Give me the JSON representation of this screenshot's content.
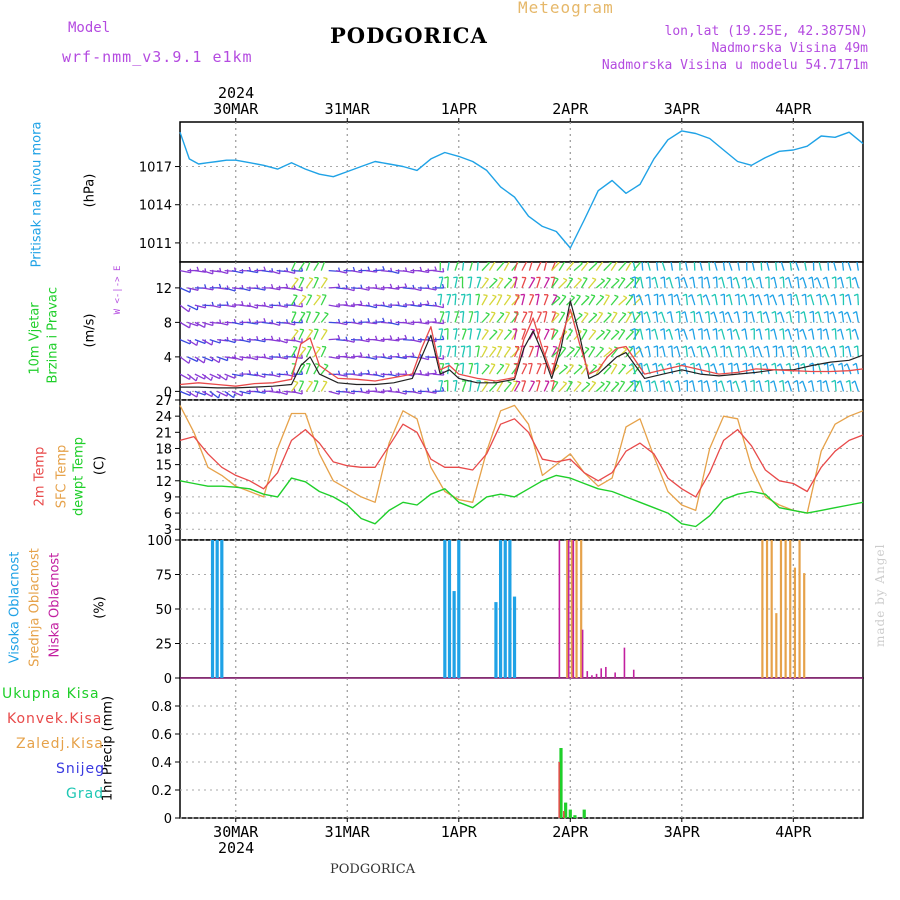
{
  "header": {
    "model_label": "Model",
    "model_name": "wrf-nmm_v3.9.1  e1km",
    "title": "PODGORICA",
    "subtitle": "Meteogram",
    "coords": "lon,lat (19.25E, 42.3875N)",
    "altitude": "Nadmorska Visina 49m",
    "model_altitude": "Nadmorska Visina u modelu 54.7171m",
    "footer_station": "PODGORICA",
    "watermark": "made by Angel",
    "year": "2024"
  },
  "colors": {
    "pressure": "#1fa2e6",
    "temp2m": "#e84a4a",
    "sfc": "#e6a24a",
    "dewpt": "#1fcf2a",
    "cloud_high": "#1fa2e6",
    "cloud_mid": "#e6a24a",
    "cloud_low": "#c21fa0",
    "purple_text": "#b44be0",
    "gust": "#222222",
    "speed": "#e84a4a"
  },
  "x_axis": {
    "days": [
      "30MAR",
      "31MAR",
      "1APR",
      "2APR",
      "3APR",
      "4APR"
    ],
    "day_hours": [
      0,
      24,
      48,
      72,
      96,
      120
    ],
    "range_hours": [
      -12,
      135
    ]
  },
  "panel_labels": {
    "pressure": "Pritisak na nivou mora",
    "pressure_unit": "(hPa)",
    "wind1": "10m Vjetar",
    "wind2": "Brzina i Pravac",
    "wind_unit": "(m/s)",
    "wind_rose": "W <-|-> E",
    "wind_rose2": "N^  S",
    "temp1": "2m Temp",
    "temp2": "SFC Temp",
    "temp3": "dewpt Temp",
    "temp_unit": "(C)",
    "cloud1": "Visoka Oblacnost",
    "cloud2": "Srednja Oblacnost",
    "cloud3": "Niska Oblacnost",
    "cloud_unit": "(%)",
    "precip_axis": "1hr Precip (mm)",
    "precip_legend": [
      "Ukupna Kisa",
      "Konvek.Kisa",
      "Zaledj.Kisa",
      "Snijeg",
      "Grad"
    ],
    "precip_legend_colors": [
      "#1fcf2a",
      "#e84a4a",
      "#e6a24a",
      "#3a3ae0",
      "#1fc7b4"
    ]
  },
  "chart_data": [
    {
      "type": "line",
      "name": "pressure",
      "ylabel": "Pritisak na nivou mora (hPa)",
      "ylim": [
        1009.5,
        1020.5
      ],
      "yticks": [
        1011,
        1014,
        1017
      ],
      "x_hours": [
        -12,
        -10,
        -8,
        -6,
        -4,
        -2,
        0,
        3,
        6,
        9,
        12,
        15,
        18,
        21,
        24,
        27,
        30,
        33,
        36,
        39,
        42,
        45,
        48,
        51,
        54,
        57,
        60,
        63,
        66,
        69,
        72,
        75,
        78,
        81,
        84,
        87,
        90,
        93,
        96,
        99,
        102,
        105,
        108,
        111,
        114,
        117,
        120,
        123,
        126,
        129,
        132,
        135
      ],
      "series": [
        {
          "values": [
            1019.7,
            1017.6,
            1017.2,
            1017.3,
            1017.4,
            1017.5,
            1017.5,
            1017.3,
            1017.1,
            1016.8,
            1017.3,
            1016.8,
            1016.4,
            1016.2,
            1016.6,
            1017.0,
            1017.4,
            1017.2,
            1017.0,
            1016.7,
            1017.6,
            1018.1,
            1017.8,
            1017.4,
            1016.7,
            1015.4,
            1014.6,
            1013.1,
            1012.3,
            1011.9,
            1010.6,
            1012.8,
            1015.1,
            1015.9,
            1014.9,
            1015.6,
            1017.6,
            1019.1,
            1019.8,
            1019.6,
            1019.2,
            1018.3,
            1017.4,
            1017.1,
            1017.7,
            1018.2,
            1018.3,
            1018.6,
            1019.4,
            1019.3,
            1019.7,
            1018.8
          ]
        }
      ]
    },
    {
      "type": "line",
      "name": "wind",
      "ylabel": "10m Vjetar Brzina i Pravac (m/s)",
      "ylim": [
        -1,
        15
      ],
      "yticks": [
        0,
        4,
        8,
        12
      ],
      "x_hours": [
        -12,
        -8,
        -4,
        0,
        4,
        8,
        12,
        14,
        16,
        18,
        22,
        26,
        30,
        34,
        38,
        40,
        42,
        44,
        46,
        48,
        52,
        56,
        60,
        62,
        64,
        66,
        68,
        70,
        72,
        74,
        76,
        78,
        80,
        82,
        84,
        88,
        92,
        96,
        100,
        104,
        108,
        112,
        116,
        120,
        124,
        128,
        132,
        135
      ],
      "series": [
        {
          "name": "speed",
          "values": [
            0.8,
            1.0,
            0.8,
            0.6,
            0.9,
            1.0,
            1.4,
            5.5,
            6.2,
            3.0,
            1.5,
            1.4,
            1.2,
            1.6,
            2.0,
            5.0,
            7.5,
            2.5,
            3.0,
            2.0,
            1.5,
            1.2,
            1.6,
            6.0,
            8.5,
            5.0,
            2.0,
            6.0,
            9.5,
            5.5,
            2.0,
            2.5,
            4.0,
            5.0,
            5.2,
            2.0,
            2.5,
            3.0,
            2.5,
            2.0,
            2.2,
            2.6,
            2.5,
            2.4,
            2.3,
            2.3,
            2.4,
            2.6
          ]
        },
        {
          "name": "gust",
          "values": [
            0.5,
            0.5,
            0.4,
            0.4,
            0.5,
            0.6,
            0.8,
            3.0,
            4.0,
            2.0,
            1.0,
            0.8,
            0.8,
            1.0,
            1.5,
            4.0,
            6.5,
            2.0,
            2.5,
            1.5,
            1.0,
            1.0,
            1.4,
            5.0,
            7.0,
            4.5,
            1.5,
            5.0,
            10.5,
            6.5,
            1.5,
            2.0,
            3.0,
            4.0,
            4.5,
            1.5,
            2.0,
            2.5,
            2.0,
            1.8,
            2.0,
            2.2,
            2.5,
            2.5,
            3.0,
            3.4,
            3.6,
            4.2
          ]
        }
      ]
    },
    {
      "type": "line",
      "name": "temperature",
      "ylabel": "(C)",
      "ylim": [
        1,
        27
      ],
      "yticks": [
        3,
        6,
        9,
        12,
        15,
        18,
        21,
        24,
        27
      ],
      "x_hours": [
        -12,
        -9,
        -6,
        -3,
        0,
        3,
        6,
        9,
        12,
        15,
        18,
        21,
        24,
        27,
        30,
        33,
        36,
        39,
        42,
        45,
        48,
        51,
        54,
        57,
        60,
        63,
        66,
        69,
        72,
        75,
        78,
        81,
        84,
        87,
        90,
        93,
        96,
        99,
        102,
        105,
        108,
        111,
        114,
        117,
        120,
        123,
        126,
        129,
        132,
        135
      ],
      "series": [
        {
          "name": "2m Temp",
          "values": [
            19.5,
            20.2,
            17.0,
            14.5,
            13.0,
            12.0,
            10.5,
            13.5,
            19.5,
            21.5,
            19.0,
            15.5,
            14.8,
            14.5,
            14.5,
            18.5,
            22.5,
            21.0,
            16.0,
            14.5,
            14.5,
            14.0,
            17.0,
            22.5,
            23.5,
            21.0,
            16.0,
            15.5,
            16.0,
            13.5,
            12.0,
            13.5,
            17.5,
            19.0,
            17.0,
            12.5,
            10.5,
            9.0,
            13.5,
            19.5,
            21.5,
            18.5,
            14.0,
            12.0,
            11.5,
            10.0,
            14.5,
            17.5,
            19.5,
            20.5
          ]
        },
        {
          "name": "SFC Temp",
          "values": [
            26.0,
            21.0,
            14.5,
            13.0,
            11.0,
            10.0,
            9.0,
            18.0,
            24.5,
            24.5,
            17.0,
            12.0,
            10.5,
            9.0,
            8.0,
            19.0,
            25.0,
            23.5,
            14.5,
            10.0,
            8.5,
            8.0,
            17.5,
            25.0,
            26.0,
            22.5,
            13.0,
            15.0,
            17.0,
            13.5,
            11.0,
            12.5,
            22.0,
            23.5,
            16.5,
            10.0,
            7.5,
            6.5,
            18.0,
            24.0,
            23.5,
            14.5,
            9.0,
            7.5,
            6.5,
            6.0,
            17.5,
            22.5,
            24.0,
            25.0
          ]
        },
        {
          "name": "dewpt Temp",
          "values": [
            12.0,
            11.5,
            11.0,
            11.0,
            10.8,
            10.5,
            9.5,
            9.0,
            12.5,
            11.8,
            10.0,
            9.0,
            7.5,
            5.0,
            4.0,
            6.5,
            8.0,
            7.5,
            9.5,
            10.5,
            8.0,
            7.0,
            9.0,
            9.5,
            9.0,
            10.5,
            12.0,
            13.0,
            12.5,
            11.5,
            10.5,
            10.0,
            9.0,
            8.0,
            7.0,
            6.0,
            4.0,
            3.5,
            5.5,
            8.5,
            9.5,
            10.0,
            9.5,
            7.0,
            6.5,
            6.0,
            6.5,
            7.0,
            7.5,
            8.0
          ]
        }
      ]
    },
    {
      "type": "bar",
      "name": "clouds",
      "ylabel": "(%)",
      "ylim": [
        0,
        100
      ],
      "yticks": [
        0,
        25,
        50,
        75,
        100
      ],
      "series": [
        {
          "name": "Visoka Oblacnost",
          "x_hours": [
            -5,
            -4,
            -3,
            45,
            46,
            47,
            48,
            56,
            57,
            58,
            59,
            60
          ],
          "values": [
            100,
            100,
            100,
            100,
            100,
            63,
            100,
            55,
            100,
            100,
            100,
            59
          ]
        },
        {
          "name": "Srednja Oblacnost",
          "x_hours": [
            71,
            72,
            73,
            74,
            113,
            114,
            115,
            116,
            117,
            118,
            119,
            120,
            121,
            122
          ],
          "values": [
            100,
            100,
            100,
            100,
            100,
            100,
            100,
            47,
            100,
            100,
            100,
            80,
            100,
            76
          ]
        },
        {
          "name": "Niska Oblacnost",
          "x_hours": [
            70,
            72,
            73,
            75,
            76,
            77,
            78,
            79,
            80,
            82,
            84,
            86
          ],
          "values": [
            100,
            100,
            100,
            35,
            5,
            2,
            3,
            7,
            8,
            4,
            22,
            6
          ]
        }
      ]
    },
    {
      "type": "bar",
      "name": "precip",
      "ylabel": "1hr Precip (mm)",
      "ylim": [
        0,
        1.0
      ],
      "yticks": [
        0,
        0.2,
        0.4,
        0.6,
        0.8
      ],
      "series": [
        {
          "name": "Ukupna Kisa",
          "x_hours": [
            70,
            71,
            72,
            73,
            75
          ],
          "values": [
            0.5,
            0.11,
            0.06,
            0.02,
            0.06
          ]
        },
        {
          "name": "Konvek.Kisa",
          "x_hours": [
            70,
            71
          ],
          "values": [
            0.4,
            0.05
          ]
        }
      ]
    }
  ]
}
